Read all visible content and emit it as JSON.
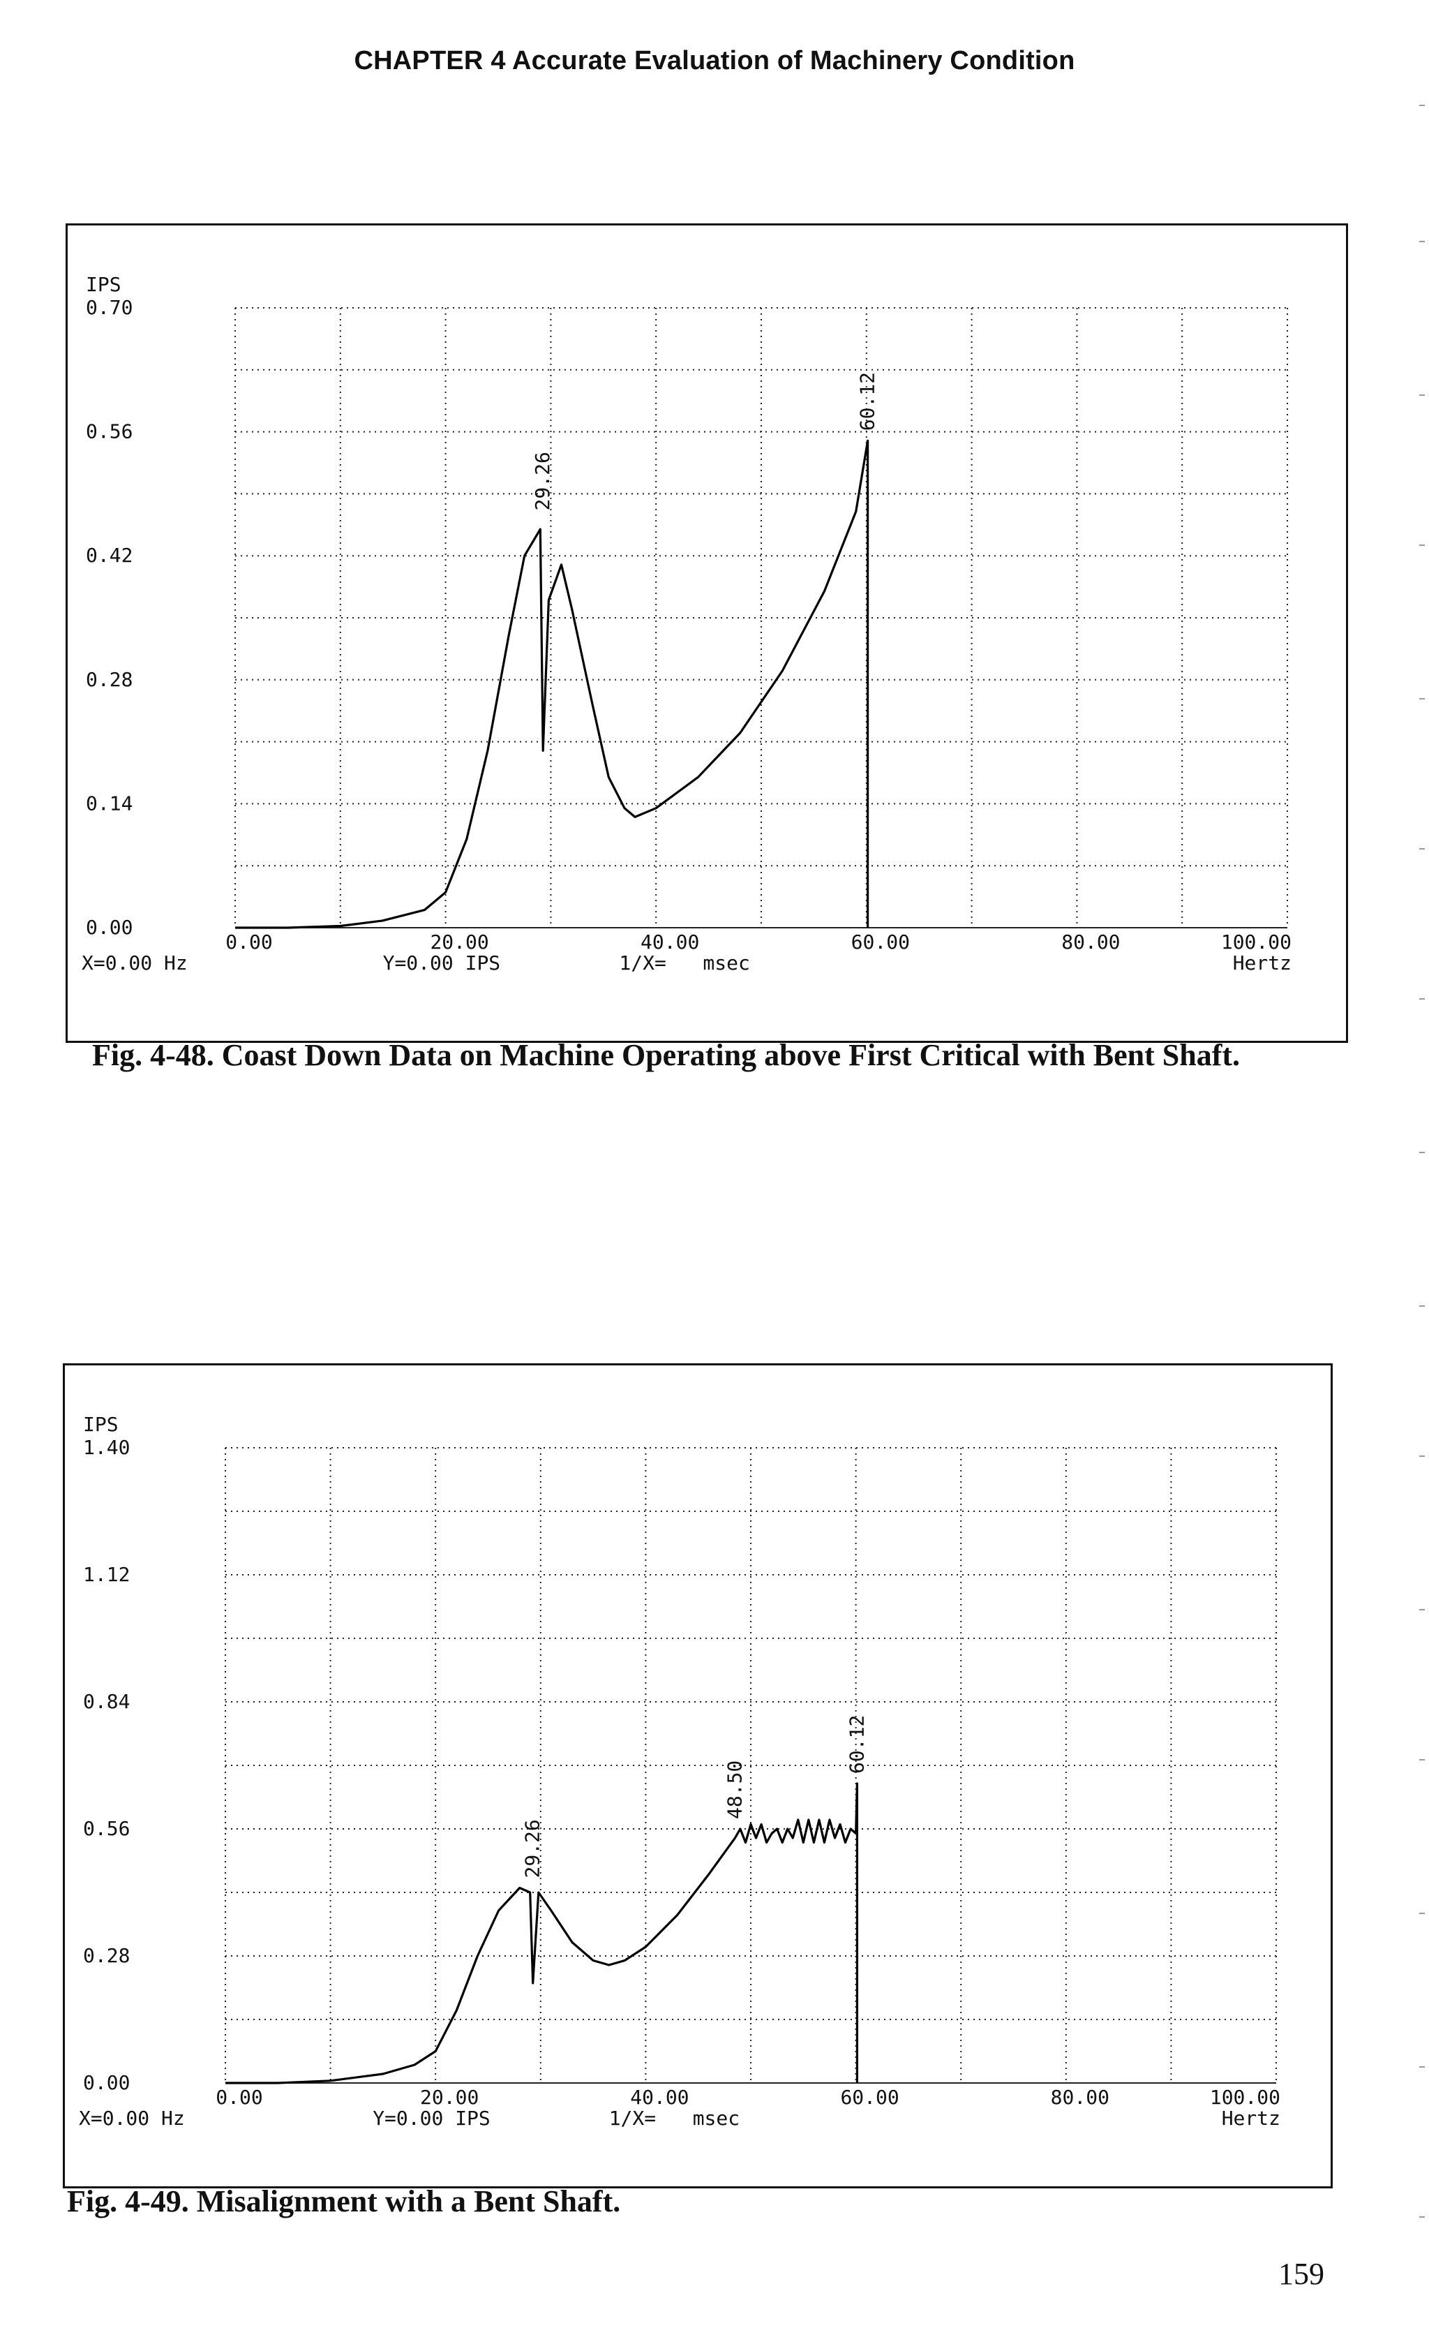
{
  "page": {
    "header": "CHAPTER 4 Accurate Evaluation of Machinery Condition",
    "page_number": "159"
  },
  "figures": [
    {
      "caption": "Fig. 4-48. Coast Down Data on Machine Operating above First Critical with Bent Shaft.",
      "chart_data": {
        "type": "line",
        "ylabel": "IPS",
        "xlabel": "Hertz",
        "xlim": [
          0,
          100
        ],
        "ylim": [
          0,
          0.7
        ],
        "x_ticks": [
          "0.00",
          "20.00",
          "40.00",
          "60.00",
          "80.00",
          "100.00"
        ],
        "y_ticks": [
          "0.00",
          "0.14",
          "0.28",
          "0.42",
          "0.56",
          "0.70"
        ],
        "status": {
          "x": "X=0.00 Hz",
          "y": "Y=0.00 IPS",
          "inv": "1/X=",
          "unit": "msec"
        },
        "markers": [
          {
            "label": "29.26",
            "x": 29.26,
            "y": 0.46
          },
          {
            "label": "60.12",
            "x": 60.12,
            "y": 0.55
          }
        ],
        "series": [
          {
            "values": [
              [
                0,
                0
              ],
              [
                5,
                0
              ],
              [
                10,
                0.002
              ],
              [
                14,
                0.008
              ],
              [
                18,
                0.02
              ],
              [
                20,
                0.04
              ],
              [
                22,
                0.1
              ],
              [
                24,
                0.2
              ],
              [
                26,
                0.33
              ],
              [
                27.5,
                0.42
              ],
              [
                29,
                0.45
              ],
              [
                29.26,
                0.2
              ],
              [
                29.8,
                0.37
              ],
              [
                31,
                0.41
              ],
              [
                32,
                0.36
              ],
              [
                34,
                0.25
              ],
              [
                35.5,
                0.17
              ],
              [
                37,
                0.135
              ],
              [
                38,
                0.125
              ],
              [
                40,
                0.135
              ],
              [
                44,
                0.17
              ],
              [
                48,
                0.22
              ],
              [
                52,
                0.29
              ],
              [
                56,
                0.38
              ],
              [
                59,
                0.47
              ],
              [
                60.12,
                0.55
              ],
              [
                60.12,
                0
              ]
            ]
          }
        ]
      }
    },
    {
      "caption": "Fig. 4-49. Misalignment with a Bent Shaft.",
      "chart_data": {
        "type": "line",
        "ylabel": "IPS",
        "xlabel": "Hertz",
        "xlim": [
          0,
          100
        ],
        "ylim": [
          0,
          1.4
        ],
        "x_ticks": [
          "0.00",
          "20.00",
          "40.00",
          "60.00",
          "80.00",
          "100.00"
        ],
        "y_ticks": [
          "0.00",
          "0.28",
          "0.56",
          "0.84",
          "1.12",
          "1.40"
        ],
        "status": {
          "x": "X=0.00 Hz",
          "y": "Y=0.00 IPS",
          "inv": "1/X=",
          "unit": "msec"
        },
        "markers": [
          {
            "label": "29.26",
            "x": 29.26,
            "y": 0.43
          },
          {
            "label": "48.50",
            "x": 48.5,
            "y": 0.56
          },
          {
            "label": "60.12",
            "x": 60.12,
            "y": 0.66
          }
        ],
        "series": [
          {
            "values": [
              [
                0,
                0
              ],
              [
                5,
                0
              ],
              [
                10,
                0.005
              ],
              [
                15,
                0.02
              ],
              [
                18,
                0.04
              ],
              [
                20,
                0.07
              ],
              [
                22,
                0.16
              ],
              [
                24,
                0.28
              ],
              [
                26,
                0.38
              ],
              [
                28,
                0.43
              ],
              [
                29,
                0.42
              ],
              [
                29.26,
                0.22
              ],
              [
                29.8,
                0.42
              ],
              [
                31,
                0.38
              ],
              [
                33,
                0.31
              ],
              [
                35,
                0.27
              ],
              [
                36.5,
                0.26
              ],
              [
                38,
                0.27
              ],
              [
                40,
                0.3
              ],
              [
                43,
                0.37
              ],
              [
                46,
                0.46
              ],
              [
                48.5,
                0.54
              ],
              [
                49,
                0.56
              ],
              [
                49.5,
                0.53
              ],
              [
                50,
                0.57
              ],
              [
                50.5,
                0.54
              ],
              [
                51,
                0.57
              ],
              [
                51.5,
                0.53
              ],
              [
                52,
                0.55
              ],
              [
                52.5,
                0.56
              ],
              [
                53,
                0.53
              ],
              [
                53.5,
                0.56
              ],
              [
                54,
                0.54
              ],
              [
                54.5,
                0.58
              ],
              [
                55,
                0.53
              ],
              [
                55.5,
                0.58
              ],
              [
                56,
                0.53
              ],
              [
                56.5,
                0.58
              ],
              [
                57,
                0.53
              ],
              [
                57.5,
                0.58
              ],
              [
                58,
                0.54
              ],
              [
                58.5,
                0.57
              ],
              [
                59,
                0.53
              ],
              [
                59.5,
                0.56
              ],
              [
                60,
                0.55
              ],
              [
                60.12,
                0.66
              ],
              [
                60.12,
                0
              ]
            ]
          }
        ]
      }
    }
  ]
}
